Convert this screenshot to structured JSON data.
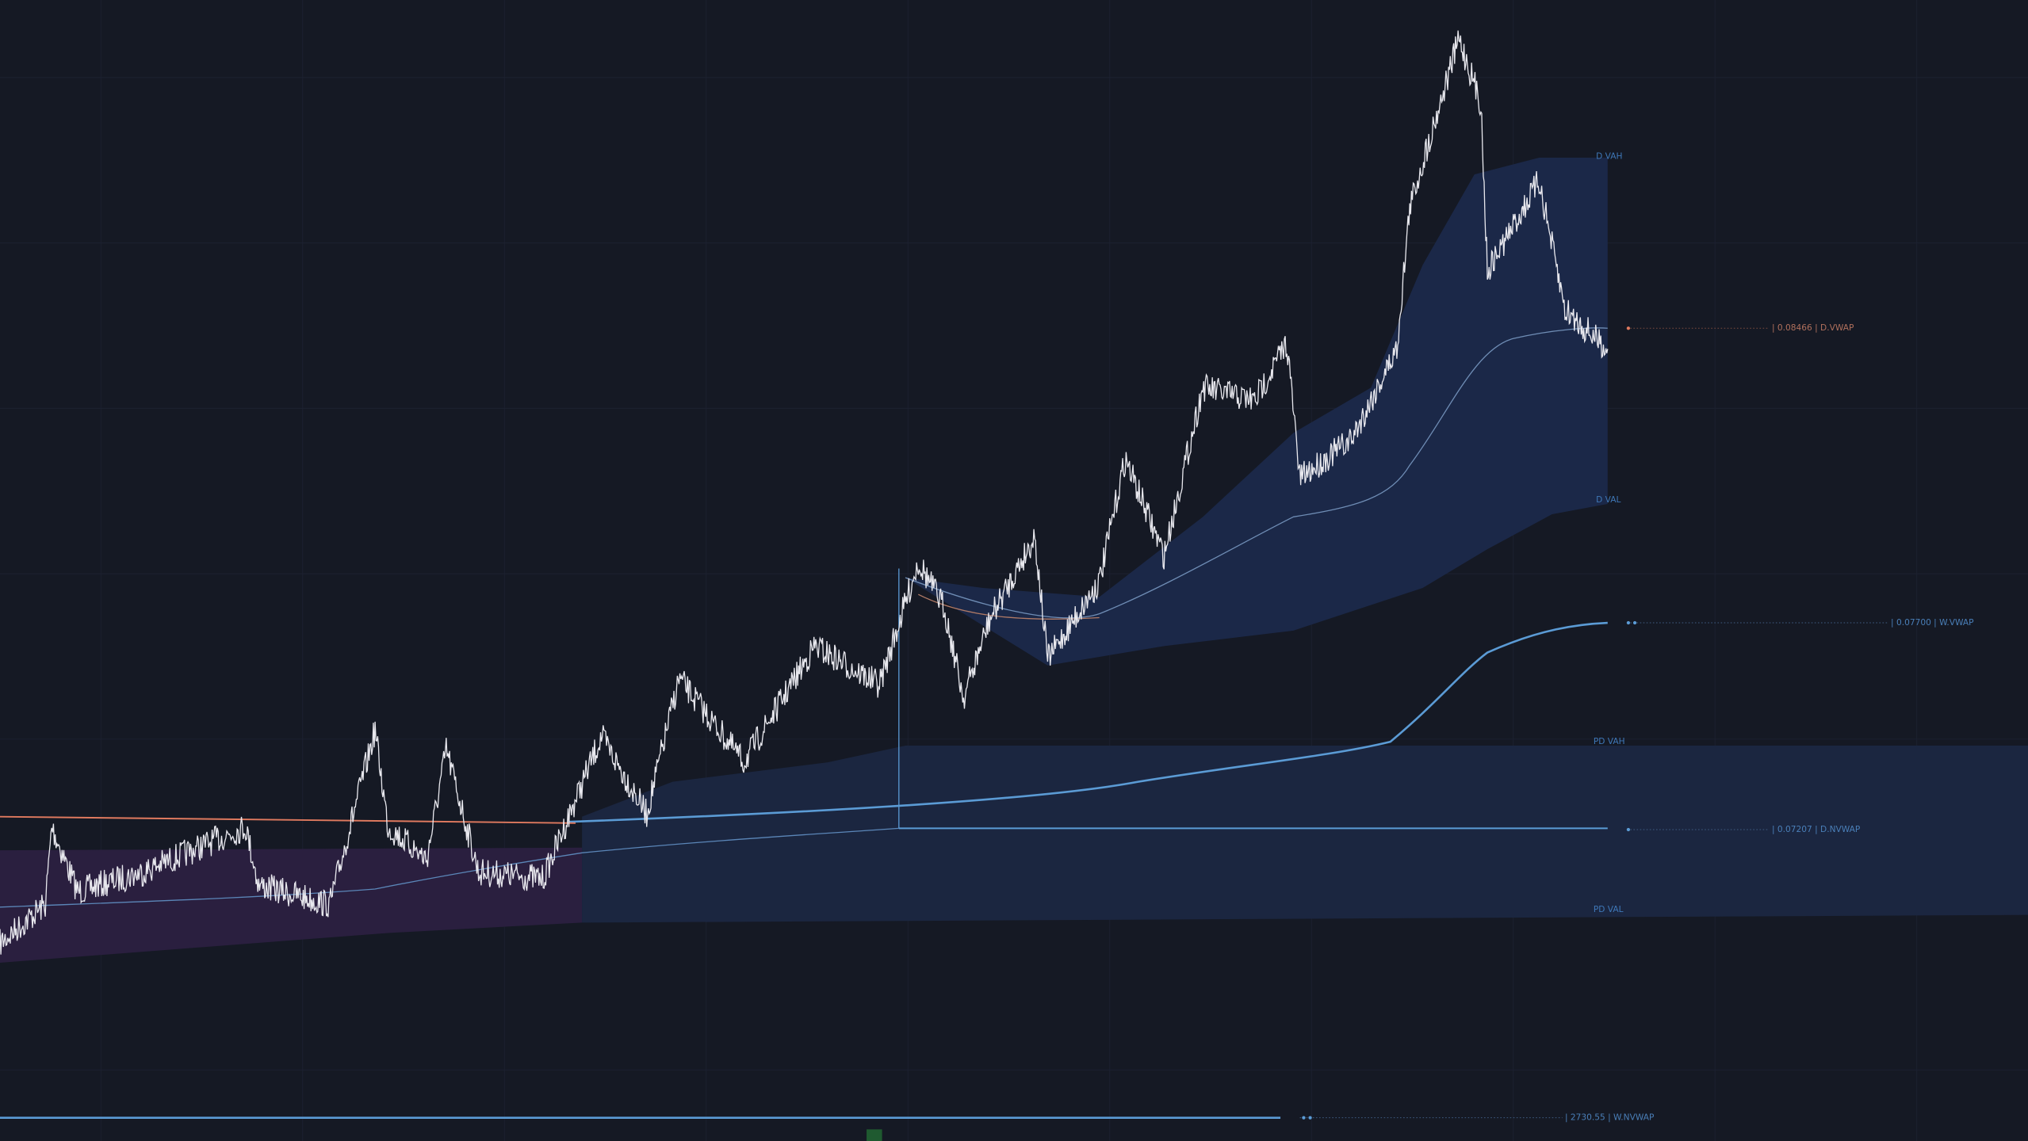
{
  "levels": {
    "d_vah": "D VAH",
    "d_vwap": "| 0.08466 | D.VWAP",
    "d_val": "D VAL",
    "w_vwap": "| 0.07700 | W.VWAP",
    "pd_vah": "PD VAH",
    "d_nvwap": "| 0.07207 | D.NVWAP",
    "pd_val": "PD VAL",
    "w_nvwap": "| 2730.55 | W.NVWAP"
  }
}
